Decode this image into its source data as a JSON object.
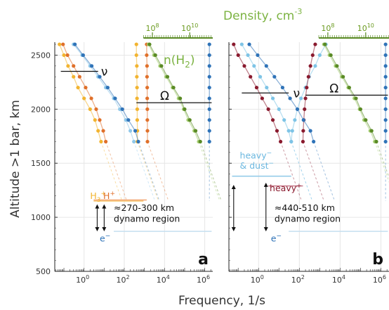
{
  "chart_data": {
    "type": "scatter",
    "x_title_text": "Frequency, 1/s",
    "y_title_text": "Altitude >1 bar, km",
    "top_title_text": "Density, cm",
    "top_title_sup": "-3",
    "x_scale": "log",
    "xlim": [
      0.035,
      2500000
    ],
    "ylim": [
      500,
      2620
    ],
    "x_ticks": [
      {
        "base": "10",
        "exp": "0"
      },
      {
        "base": "10",
        "exp": "2"
      },
      {
        "base": "10",
        "exp": "4"
      },
      {
        "base": "10",
        "exp": "6"
      }
    ],
    "y_ticks": [
      "500",
      "1000",
      "1500",
      "2000",
      "2500"
    ],
    "top_ticks": [
      {
        "base": "10",
        "exp": "8"
      },
      {
        "base": "10",
        "exp": "10"
      }
    ],
    "grid": true,
    "panels": [
      {
        "id": "a",
        "letter": "a",
        "labels": {
          "nu": "ν",
          "omega": "Ω",
          "nH2": "n(H",
          "nH2_sub": "2",
          "nH2_close": ")",
          "H3": "H",
          "H3_sub": "3",
          "H3_sup": "+",
          "Hplus": "H",
          "Hplus_sup": "+",
          "electron": "e",
          "electron_sup": "−",
          "dynamo_range": "≈270-300 km",
          "dynamo_region": "dynamo region"
        },
        "series": [
          {
            "name": "H3+ collisions",
            "color": "#f2b430",
            "points": [
              [
                0.06,
                2600
              ],
              [
                0.1,
                2500
              ],
              [
                0.16,
                2400
              ],
              [
                0.3,
                2300
              ],
              [
                0.5,
                2200
              ],
              [
                1,
                2100
              ],
              [
                2,
                2000
              ],
              [
                3.5,
                1900
              ],
              [
                5,
                1800
              ],
              [
                7,
                1700
              ]
            ]
          },
          {
            "name": "H+ collisions",
            "color": "#e0702a",
            "points": [
              [
                0.09,
                2600
              ],
              [
                0.15,
                2500
              ],
              [
                0.3,
                2400
              ],
              [
                0.6,
                2300
              ],
              [
                1.2,
                2200
              ],
              [
                2.3,
                2100
              ],
              [
                4,
                2000
              ],
              [
                6,
                1900
              ],
              [
                9,
                1800
              ],
              [
                12,
                1700
              ]
            ]
          },
          {
            "name": "electron collisions",
            "color": "#8fc8ea",
            "points": [
              [
                0.3,
                2600
              ],
              [
                0.8,
                2500
              ],
              [
                2,
                2400
              ],
              [
                5,
                2300
              ],
              [
                12,
                2200
              ],
              [
                30,
                2100
              ],
              [
                60,
                2000
              ],
              [
                120,
                1900
              ],
              [
                200,
                1800
              ],
              [
                300,
                1700
              ]
            ]
          },
          {
            "name": "H3+ gyrofrequency",
            "color": "#f2b430",
            "points": [
              [
                400,
                2600
              ],
              [
                400,
                2500
              ],
              [
                420,
                2400
              ],
              [
                420,
                2300
              ],
              [
                430,
                2200
              ],
              [
                430,
                2100
              ],
              [
                440,
                2000
              ],
              [
                440,
                1900
              ],
              [
                450,
                1800
              ],
              [
                450,
                1700
              ]
            ]
          },
          {
            "name": "H+ gyrofrequency",
            "color": "#e0702a",
            "points": [
              [
                1300,
                2600
              ],
              [
                1300,
                2500
              ],
              [
                1350,
                2400
              ],
              [
                1350,
                2300
              ],
              [
                1380,
                2200
              ],
              [
                1380,
                2100
              ],
              [
                1400,
                2000
              ],
              [
                1400,
                1900
              ],
              [
                1420,
                1800
              ],
              [
                1420,
                1700
              ]
            ]
          },
          {
            "name": "dense electron collisions",
            "color": "#2f73b8",
            "points": [
              [
                0.35,
                2600
              ],
              [
                0.9,
                2500
              ],
              [
                2.4,
                2400
              ],
              [
                6,
                2300
              ],
              [
                15,
                2200
              ],
              [
                35,
                2100
              ],
              [
                80,
                2000
              ],
              [
                160,
                1900
              ],
              [
                350,
                1800
              ],
              [
                500,
                1700
              ]
            ]
          },
          {
            "name": "n(H2)",
            "color": "#a5cd72",
            "points": [
              [
                1600,
                2600
              ],
              [
                3000,
                2500
              ],
              [
                6000,
                2400
              ],
              [
                12000,
                2300
              ],
              [
                25000,
                2200
              ],
              [
                50000,
                2100
              ],
              [
                90000,
                2000
              ],
              [
                150000,
                1900
              ],
              [
                300000,
                1800
              ],
              [
                500000,
                1700
              ]
            ]
          },
          {
            "name": "n(H2) lower",
            "color": "#5a8a25",
            "points": [
              [
                1800,
                2600
              ],
              [
                3500,
                2500
              ],
              [
                7000,
                2400
              ],
              [
                14000,
                2300
              ],
              [
                28000,
                2200
              ],
              [
                60000,
                2100
              ],
              [
                100000,
                2000
              ],
              [
                180000,
                1900
              ],
              [
                350000,
                1800
              ],
              [
                600000,
                1700
              ]
            ]
          },
          {
            "name": "electron gyrofrequency",
            "color": "#2f73b8",
            "points": [
              [
                1700000,
                2600
              ],
              [
                1700000,
                2500
              ],
              [
                1700000,
                2400
              ],
              [
                1700000,
                2300
              ],
              [
                1700000,
                2200
              ],
              [
                1700000,
                2100
              ],
              [
                1700000,
                2000
              ],
              [
                1700000,
                1900
              ],
              [
                1700000,
                1800
              ],
              [
                1700000,
                1700
              ]
            ]
          }
        ]
      },
      {
        "id": "b",
        "letter": "b",
        "labels": {
          "nu": "ν",
          "omega": "Ω",
          "heavy_dust_1": "heavy",
          "heavy_dust_1_sup": "−",
          "heavy_dust_2": "& dust",
          "heavy_dust_2_sup": "−",
          "heavy_plus": "heavy",
          "heavy_plus_sup": "+",
          "electron": "e",
          "electron_sup": "−",
          "dynamo_range": "≈440-510 km",
          "dynamo_region": "dynamo region"
        },
        "series": [
          {
            "name": "heavy+ collisions",
            "color": "#8a1a2e",
            "points": [
              [
                0.06,
                2600
              ],
              [
                0.1,
                2500
              ],
              [
                0.2,
                2400
              ],
              [
                0.4,
                2300
              ],
              [
                0.8,
                2200
              ],
              [
                1.5,
                2100
              ],
              [
                3,
                2000
              ],
              [
                5,
                1900
              ],
              [
                8,
                1800
              ],
              [
                12,
                1700
              ]
            ]
          },
          {
            "name": "heavy- & dust- collisions",
            "color": "#7ec4e6",
            "points": [
              [
                0.15,
                2600
              ],
              [
                0.3,
                2500
              ],
              [
                0.6,
                2400
              ],
              [
                1.2,
                2300
              ],
              [
                2.5,
                2200
              ],
              [
                5,
                2100
              ],
              [
                10,
                2000
              ],
              [
                18,
                1900
              ],
              [
                30,
                1800
              ],
              [
                40,
                1700
              ]
            ]
          },
          {
            "name": "heavy- gyrofrequency",
            "color": "#7ec4e6",
            "points": [
              [
                2000,
                2600
              ],
              [
                1000,
                2500
              ],
              [
                600,
                2400
              ],
              [
                300,
                2300
              ],
              [
                200,
                2200
              ],
              [
                120,
                2100
              ],
              [
                80,
                2000
              ],
              [
                60,
                1900
              ],
              [
                45,
                1800
              ],
              [
                40,
                1700
              ]
            ]
          },
          {
            "name": "heavy+ gyrofrequency",
            "color": "#8a1a2e",
            "points": [
              [
                600,
                2600
              ],
              [
                450,
                2500
              ],
              [
                350,
                2400
              ],
              [
                280,
                2300
              ],
              [
                230,
                2200
              ],
              [
                200,
                2100
              ],
              [
                180,
                2000
              ],
              [
                165,
                1900
              ],
              [
                155,
                1800
              ],
              [
                150,
                1700
              ]
            ]
          },
          {
            "name": "electron collisions",
            "color": "#2f73b8",
            "points": [
              [
                0.35,
                2600
              ],
              [
                0.9,
                2500
              ],
              [
                2.4,
                2400
              ],
              [
                6,
                2300
              ],
              [
                15,
                2200
              ],
              [
                35,
                2100
              ],
              [
                80,
                2000
              ],
              [
                160,
                1900
              ],
              [
                350,
                1800
              ],
              [
                500,
                1700
              ]
            ]
          },
          {
            "name": "n(H2)",
            "color": "#a5cd72",
            "points": [
              [
                1600,
                2600
              ],
              [
                3000,
                2500
              ],
              [
                6000,
                2400
              ],
              [
                12000,
                2300
              ],
              [
                25000,
                2200
              ],
              [
                50000,
                2100
              ],
              [
                90000,
                2000
              ],
              [
                150000,
                1900
              ],
              [
                300000,
                1800
              ],
              [
                500000,
                1700
              ]
            ]
          },
          {
            "name": "n(H2) lower",
            "color": "#5a8a25",
            "points": [
              [
                1800,
                2600
              ],
              [
                3500,
                2500
              ],
              [
                7000,
                2400
              ],
              [
                14000,
                2300
              ],
              [
                28000,
                2200
              ],
              [
                60000,
                2100
              ],
              [
                100000,
                2000
              ],
              [
                180000,
                1900
              ],
              [
                350000,
                1800
              ],
              [
                600000,
                1700
              ]
            ]
          },
          {
            "name": "electron gyrofrequency",
            "color": "#2f73b8",
            "points": [
              [
                1700000,
                2600
              ],
              [
                1700000,
                2500
              ],
              [
                1700000,
                2400
              ],
              [
                1700000,
                2300
              ],
              [
                1700000,
                2200
              ],
              [
                1700000,
                2100
              ],
              [
                1700000,
                2000
              ],
              [
                1700000,
                1900
              ],
              [
                1700000,
                1800
              ],
              [
                1700000,
                1700
              ]
            ]
          }
        ]
      }
    ]
  }
}
